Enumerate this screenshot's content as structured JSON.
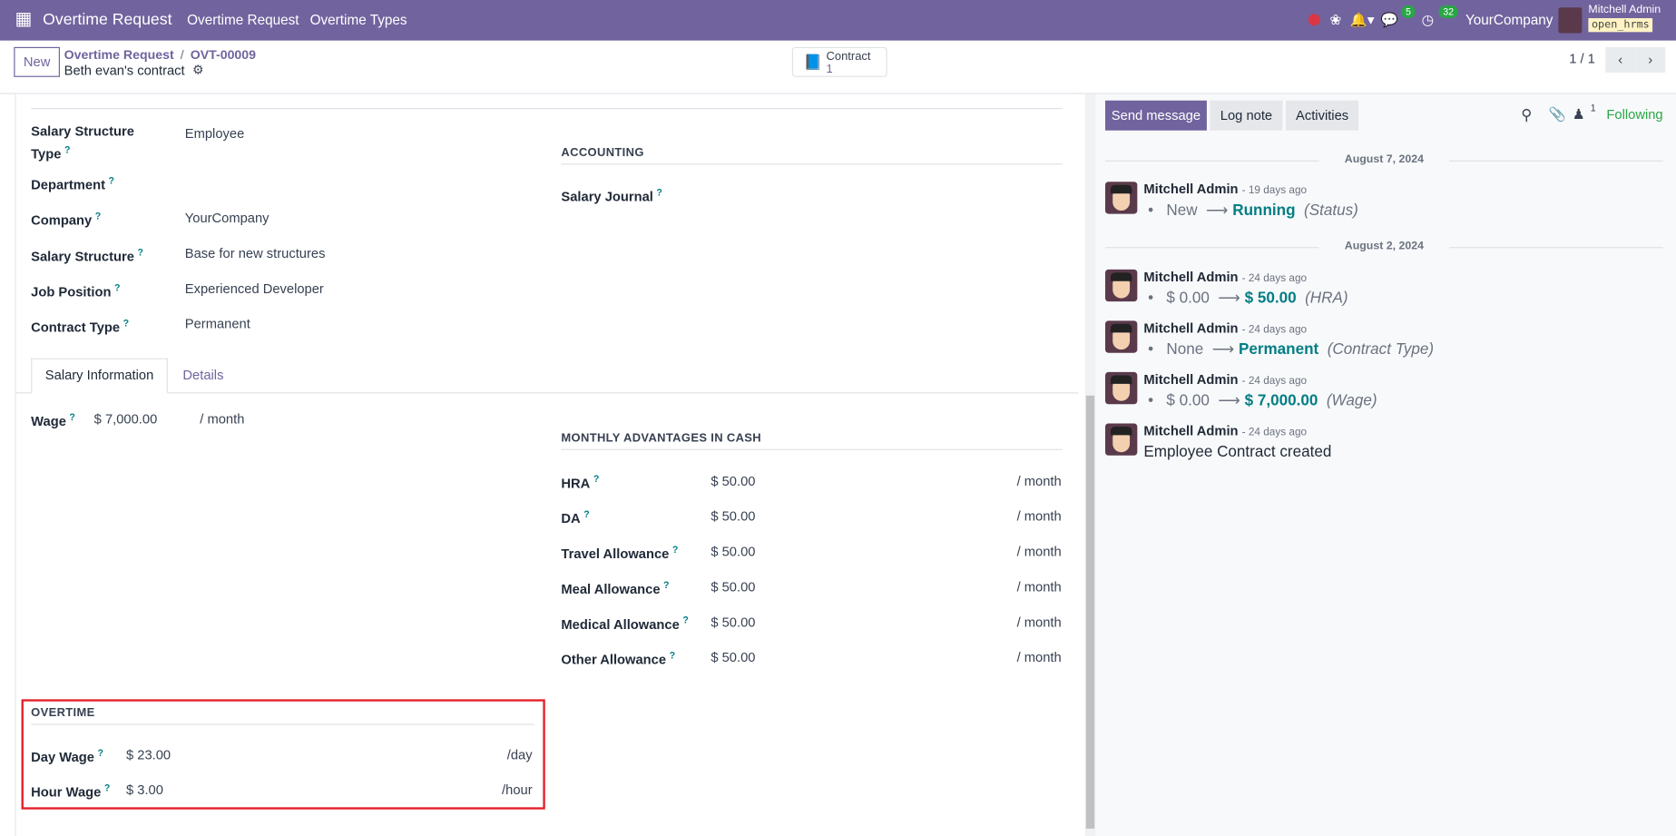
{
  "nav": {
    "app_title": "Overtime Request",
    "menu": [
      "Overtime Request",
      "Overtime Types"
    ],
    "messages_count": "5",
    "activities_count": "32",
    "company": "YourCompany",
    "user_name": "Mitchell Admin",
    "db_name": "open_hrms"
  },
  "control": {
    "new_label": "New",
    "breadcrumb_parent": "Overtime Request",
    "breadcrumb_sep": "/",
    "breadcrumb_current": "OVT-00009",
    "record_name": "Beth evan's contract",
    "smart_button_label": "Contract",
    "smart_button_count": "1",
    "pager": "1 / 1"
  },
  "form": {
    "fields": [
      {
        "label": "Salary Structure Type",
        "value": "Employee"
      },
      {
        "label": "Department",
        "value": ""
      },
      {
        "label": "Company",
        "value": "YourCompany"
      },
      {
        "label": "Salary Structure",
        "value": "Base for new structures"
      },
      {
        "label": "Job Position",
        "value": "Experienced Developer"
      },
      {
        "label": "Contract Type",
        "value": "Permanent"
      }
    ],
    "help": "?",
    "accounting": {
      "title": "ACCOUNTING",
      "salary_journal": "Salary Journal"
    },
    "tabs": [
      "Salary Information",
      "Details"
    ],
    "wage": {
      "label": "Wage",
      "value": "$ 7,000.00",
      "unit": "/ month"
    },
    "advantages": {
      "title": "MONTHLY ADVANTAGES IN CASH",
      "rows": [
        {
          "label": "HRA",
          "value": "$ 50.00",
          "unit": "/ month"
        },
        {
          "label": "DA",
          "value": "$ 50.00",
          "unit": "/ month"
        },
        {
          "label": "Travel Allowance",
          "value": "$ 50.00",
          "unit": "/ month"
        },
        {
          "label": "Meal Allowance",
          "value": "$ 50.00",
          "unit": "/ month"
        },
        {
          "label": "Medical Allowance",
          "value": "$ 50.00",
          "unit": "/ month"
        },
        {
          "label": "Other Allowance",
          "value": "$ 50.00",
          "unit": "/ month"
        }
      ]
    },
    "overtime": {
      "title": "OVERTIME",
      "day_label": "Day Wage",
      "day_value": "$ 23.00",
      "day_unit": "/day",
      "hour_label": "Hour Wage",
      "hour_value": "$ 3.00",
      "hour_unit": "/hour"
    }
  },
  "chatter": {
    "send_message": "Send message",
    "log_note": "Log note",
    "activities": "Activities",
    "followers_count": "1",
    "following": "Following",
    "dates": [
      "August 7, 2024",
      "August 2, 2024"
    ],
    "messages": [
      {
        "author": "Mitchell Admin",
        "time": "- 19 days ago",
        "old": "New",
        "new": "Running",
        "field": "(Status)"
      },
      {
        "author": "Mitchell Admin",
        "time": "- 24 days ago",
        "old": "$ 0.00",
        "new": "$ 50.00",
        "field": "(HRA)"
      },
      {
        "author": "Mitchell Admin",
        "time": "- 24 days ago",
        "old": "None",
        "new": "Permanent",
        "field": "(Contract Type)"
      },
      {
        "author": "Mitchell Admin",
        "time": "- 24 days ago",
        "old": "$ 0.00",
        "new": "$ 7,000.00",
        "field": "(Wage)"
      },
      {
        "author": "Mitchell Admin",
        "time": "- 24 days ago",
        "body": "Employee Contract created"
      }
    ]
  },
  "colors": {
    "brand": "#71639e",
    "link": "#017e84",
    "following": "#28a745",
    "highlight_box": "#e41e26"
  }
}
